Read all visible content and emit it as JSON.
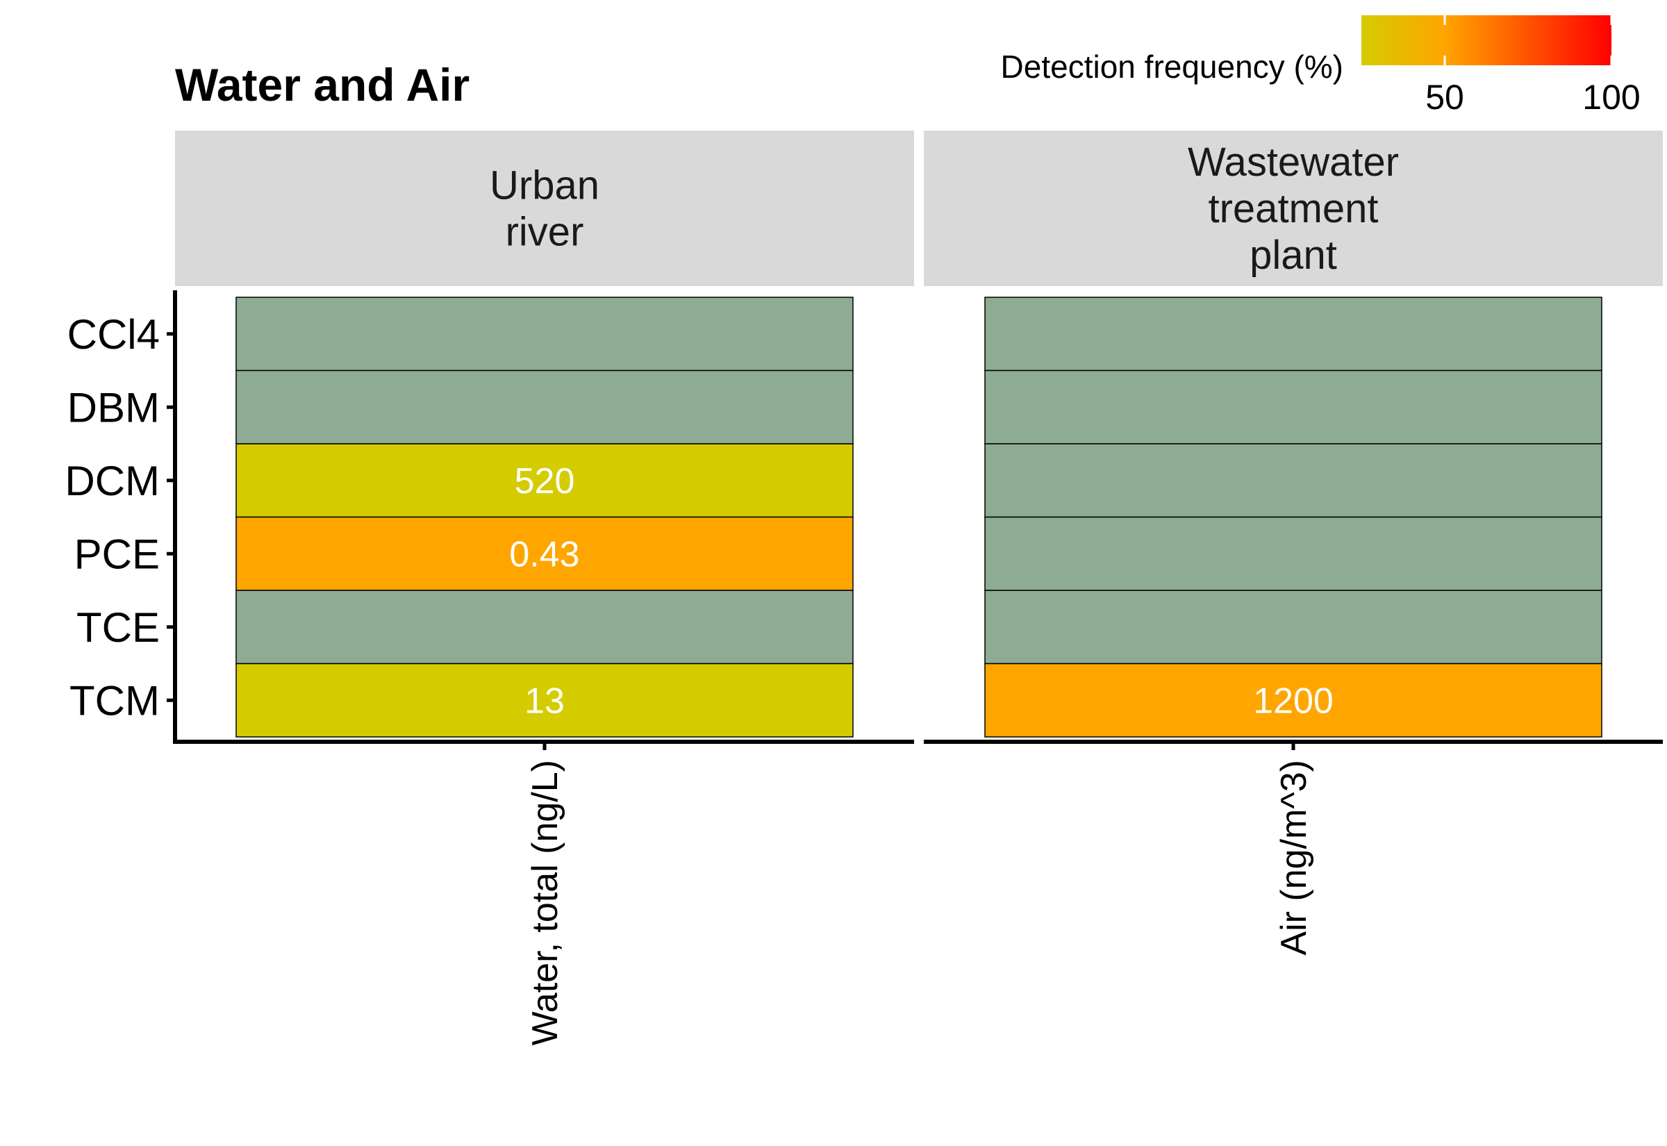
{
  "chart_data": {
    "type": "heatmap",
    "title": "Water and Air",
    "rows": [
      "CCl4",
      "DBM",
      "DCM",
      "PCE",
      "TCE",
      "TCM"
    ],
    "panels": [
      {
        "strip": [
          "Urban",
          "river"
        ],
        "xtick": "Water, total (ng/L)",
        "cells": [
          {
            "row": "CCl4",
            "label": "",
            "detection_pct": null
          },
          {
            "row": "DBM",
            "label": "",
            "detection_pct": null
          },
          {
            "row": "DCM",
            "label": "520",
            "detection_pct": 25
          },
          {
            "row": "PCE",
            "label": "0.43",
            "detection_pct": 50
          },
          {
            "row": "TCE",
            "label": "",
            "detection_pct": null
          },
          {
            "row": "TCM",
            "label": "13",
            "detection_pct": 25
          }
        ]
      },
      {
        "strip": [
          "Wastewater",
          "treatment",
          "plant"
        ],
        "xtick": "Air (ng/m^3)",
        "cells": [
          {
            "row": "CCl4",
            "label": "",
            "detection_pct": null
          },
          {
            "row": "DBM",
            "label": "",
            "detection_pct": null
          },
          {
            "row": "DCM",
            "label": "",
            "detection_pct": null
          },
          {
            "row": "PCE",
            "label": "",
            "detection_pct": null
          },
          {
            "row": "TCE",
            "label": "",
            "detection_pct": null
          },
          {
            "row": "TCM",
            "label": "1200",
            "detection_pct": 50
          }
        ]
      }
    ],
    "legend": {
      "title": "Detection frequency (%)",
      "placement": "top-right",
      "range": [
        25,
        100
      ],
      "ticks": [
        50,
        100
      ],
      "colors": [
        "#d4cc00",
        "#ffa500",
        "#ff0000"
      ]
    },
    "colors": {
      "not_detected": "#8eab93",
      "cell_border": "#000000",
      "strip_background": "#d9d9d9"
    }
  }
}
